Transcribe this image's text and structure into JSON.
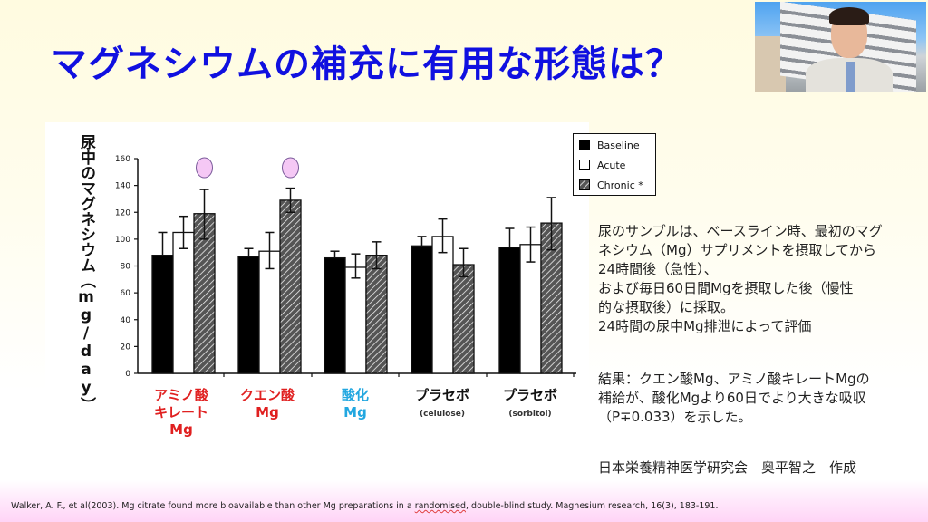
{
  "slide": {
    "title": "マグネシウムの補充に有用な形態は？",
    "title_color": "#1010e0"
  },
  "video_thumbnail": {
    "description": "presenter webcam feed"
  },
  "chart_data": {
    "type": "bar",
    "title": "",
    "ylabel": "尿中のマグネシウム（mg/day）",
    "xlabel": "",
    "ylim": [
      0,
      160
    ],
    "yticks": [
      0,
      20,
      40,
      60,
      80,
      100,
      120,
      140,
      160
    ],
    "grid": false,
    "legend_position": "top-right",
    "categories": [
      {
        "label": "アミノ酸\nキレート\nMg",
        "lines": [
          "アミノ酸",
          "キレート",
          "Mg"
        ],
        "sub": "",
        "color": "#e02020"
      },
      {
        "label": "クエン酸\nMg",
        "lines": [
          "クエン酸",
          "Mg"
        ],
        "sub": "",
        "color": "#e02020"
      },
      {
        "label": "酸化\nMg",
        "lines": [
          "酸化",
          "Mg"
        ],
        "sub": "",
        "color": "#22a7e0"
      },
      {
        "label": "プラセボ (celulose)",
        "lines": [
          "プラセボ"
        ],
        "sub": "(celulose)",
        "color": "#111111"
      },
      {
        "label": "プラセボ (sorbitol)",
        "lines": [
          "プラセボ"
        ],
        "sub": "(sorbitol)",
        "color": "#111111"
      }
    ],
    "series": [
      {
        "name": "Baseline",
        "fill": "black",
        "values": [
          88,
          87,
          86,
          95,
          94
        ],
        "err_high": [
          105,
          93,
          91,
          102,
          108
        ],
        "err_low": [
          88,
          87,
          86,
          95,
          94
        ]
      },
      {
        "name": "Acute",
        "fill": "white",
        "values": [
          105,
          91,
          79,
          102,
          96
        ],
        "err_high": [
          117,
          105,
          89,
          115,
          109
        ],
        "err_low": [
          93,
          78,
          71,
          90,
          83
        ]
      },
      {
        "name": "Chronic *",
        "fill": "hatched",
        "values": [
          119,
          129,
          88,
          81,
          112
        ],
        "err_high": [
          137,
          138,
          98,
          93,
          131
        ],
        "err_low": [
          100,
          120,
          78,
          72,
          92
        ]
      }
    ],
    "annotations": [
      {
        "type": "marker",
        "shape": "circle",
        "color": "#f5c8f5",
        "category_index": 0,
        "series": "Chronic *"
      },
      {
        "type": "marker",
        "shape": "circle",
        "color": "#f5c8f5",
        "category_index": 1,
        "series": "Chronic *"
      }
    ]
  },
  "description": {
    "lines": [
      "尿のサンプルは、ベースライン時、最初のマグ",
      "ネシウム（Mg）サプリメントを摂取してから",
      "24時間後（急性）、",
      "および毎日60日間Mgを摂取した後（慢性",
      "的な摂取後）に採取。",
      "24時間の尿中Mg排泄によって評価"
    ],
    "result_lines": [
      "結果：クエン酸Mg、アミノ酸キレートMgの",
      "補給が、酸化Mgより60日でより大きな吸収",
      "（P∓0.033）を示した。"
    ],
    "credit": "日本栄養精神医学研究会　奥平智之　作成"
  },
  "citation": {
    "before": "Walker, A. F., et al(2003). Mg citrate found more bioavailable than other Mg preparations in a ",
    "underlined": "randomised",
    "after": ", double-blind study. Magnesium research, 16(3), 183-191."
  }
}
